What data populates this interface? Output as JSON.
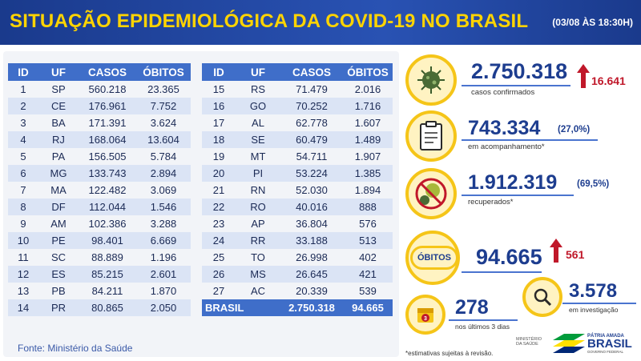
{
  "header": {
    "title": "SITUAÇÃO EPIDEMIOLÓGICA DA COVID-19 NO BRASIL",
    "date": "(03/08 ÀS 18:30H)"
  },
  "table": {
    "columns": [
      "ID",
      "UF",
      "CASOS",
      "ÓBITOS"
    ],
    "left_rows": [
      [
        "1",
        "SP",
        "560.218",
        "23.365"
      ],
      [
        "2",
        "CE",
        "176.961",
        "7.752"
      ],
      [
        "3",
        "BA",
        "171.391",
        "3.624"
      ],
      [
        "4",
        "RJ",
        "168.064",
        "13.604"
      ],
      [
        "5",
        "PA",
        "156.505",
        "5.784"
      ],
      [
        "6",
        "MG",
        "133.743",
        "2.894"
      ],
      [
        "7",
        "MA",
        "122.482",
        "3.069"
      ],
      [
        "8",
        "DF",
        "112.044",
        "1.546"
      ],
      [
        "9",
        "AM",
        "102.386",
        "3.288"
      ],
      [
        "10",
        "PE",
        "98.401",
        "6.669"
      ],
      [
        "11",
        "SC",
        "88.889",
        "1.196"
      ],
      [
        "12",
        "ES",
        "85.215",
        "2.601"
      ],
      [
        "13",
        "PB",
        "84.211",
        "1.870"
      ],
      [
        "14",
        "PR",
        "80.865",
        "2.050"
      ]
    ],
    "right_rows": [
      [
        "15",
        "RS",
        "71.479",
        "2.016"
      ],
      [
        "16",
        "GO",
        "70.252",
        "1.716"
      ],
      [
        "17",
        "AL",
        "62.778",
        "1.607"
      ],
      [
        "18",
        "SE",
        "60.479",
        "1.489"
      ],
      [
        "19",
        "MT",
        "54.711",
        "1.907"
      ],
      [
        "20",
        "PI",
        "53.224",
        "1.385"
      ],
      [
        "21",
        "RN",
        "52.030",
        "1.894"
      ],
      [
        "22",
        "RO",
        "40.016",
        "888"
      ],
      [
        "23",
        "AP",
        "36.804",
        "576"
      ],
      [
        "24",
        "RR",
        "33.188",
        "513"
      ],
      [
        "25",
        "TO",
        "26.998",
        "402"
      ],
      [
        "26",
        "MS",
        "26.645",
        "421"
      ],
      [
        "27",
        "AC",
        "20.339",
        "539"
      ]
    ],
    "total": {
      "label": "BRASIL",
      "casos": "2.750.318",
      "obitos": "94.665"
    }
  },
  "fonte": "Fonte: Ministério da Saúde",
  "stats": {
    "confirmed": {
      "value": "2.750.318",
      "label": "casos confirmados",
      "delta": "16.641",
      "icon": "virus-icon"
    },
    "monitoring": {
      "value": "743.334",
      "pct": "(27,0%)",
      "label": "em acompanhamento*",
      "icon": "clipboard-icon"
    },
    "recovered": {
      "value": "1.912.319",
      "pct": "(69,5%)",
      "label": "recuperados*",
      "icon": "no-virus-icon"
    },
    "deaths": {
      "pill": "ÓBITOS",
      "value": "94.665",
      "delta": "561"
    },
    "investigation": {
      "value": "3.578",
      "label": "em investigação",
      "icon": "magnifier-icon"
    },
    "last3days": {
      "value": "278",
      "label": "nos últimos 3 dias",
      "icon_text": "3"
    }
  },
  "note": "*estimativas sujeitas à revisão.",
  "branding": {
    "ministry": "MINISTÉRIO DA SAÚDE",
    "line1": "PÁTRIA AMADA",
    "line2": "BRASIL",
    "line3": "GOVERNO FEDERAL"
  },
  "colors": {
    "accent_yellow": "#f5c518",
    "navy": "#1d3d8f",
    "table_blue": "#3f6ec9",
    "alert_red": "#c0182a"
  }
}
